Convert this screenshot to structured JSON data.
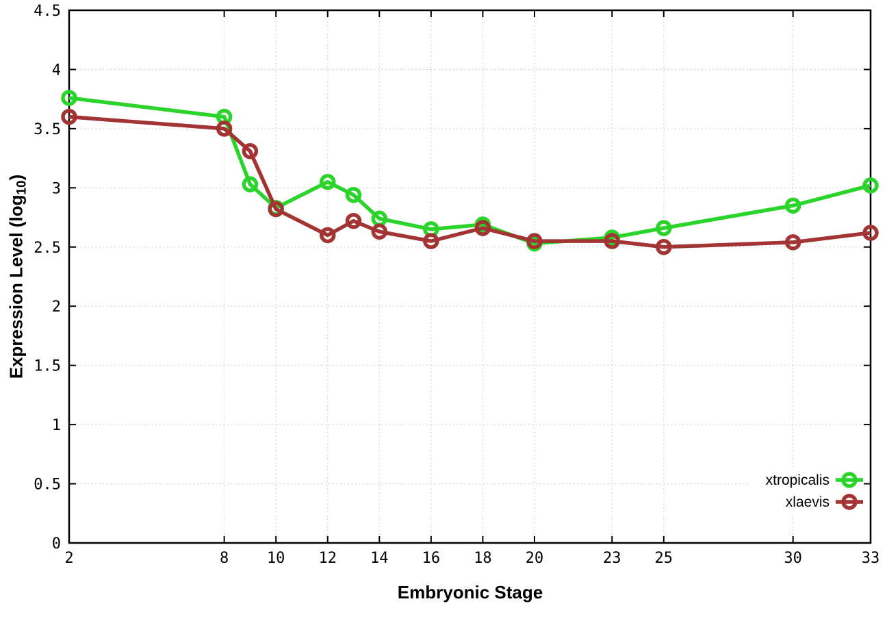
{
  "chart_data": {
    "type": "line",
    "title": "",
    "xlabel": "Embryonic Stage",
    "ylabel": "Expression Level (log10)",
    "ylabel_parts": {
      "prefix": "Expression Level (log",
      "sub": "10",
      "suffix": ")"
    },
    "x": [
      2,
      8,
      9,
      10,
      12,
      13,
      14,
      16,
      18,
      20,
      23,
      25,
      30,
      33
    ],
    "series": [
      {
        "name": "xtropicalis",
        "color": "#2bd42b",
        "marker": "open-circle",
        "values": [
          3.76,
          3.6,
          3.03,
          2.83,
          3.05,
          2.94,
          2.74,
          2.65,
          2.69,
          2.53,
          2.58,
          2.66,
          2.85,
          3.02
        ]
      },
      {
        "name": "xlaevis",
        "color": "#a23434",
        "marker": "open-circle",
        "values": [
          3.6,
          3.5,
          3.31,
          2.82,
          2.6,
          2.72,
          2.63,
          2.55,
          2.66,
          2.55,
          2.55,
          2.5,
          2.54,
          2.62
        ]
      }
    ],
    "xlim": [
      2,
      33
    ],
    "ylim": [
      0,
      4.5
    ],
    "xticks": [
      2,
      8,
      10,
      12,
      14,
      16,
      18,
      20,
      23,
      25,
      30,
      33
    ],
    "xtick_labels": [
      "2",
      "8",
      "10",
      "12",
      "14",
      "16",
      "18",
      "20",
      "23",
      "25",
      "30",
      "33"
    ],
    "yticks": [
      0,
      0.5,
      1,
      1.5,
      2,
      2.5,
      3,
      3.5,
      4,
      4.5
    ],
    "ytick_labels": [
      "0",
      "0.5",
      "1",
      "1.5",
      "2",
      "2.5",
      "3",
      "3.5",
      "4",
      "4.5"
    ],
    "grid": true,
    "grid_color": "#bdbdbd",
    "axis_color": "#000000",
    "background_color": "#ffffff",
    "legend_position": "inside-bottom-right",
    "legend_entries": [
      "xtropicalis",
      "xlaevis"
    ]
  }
}
